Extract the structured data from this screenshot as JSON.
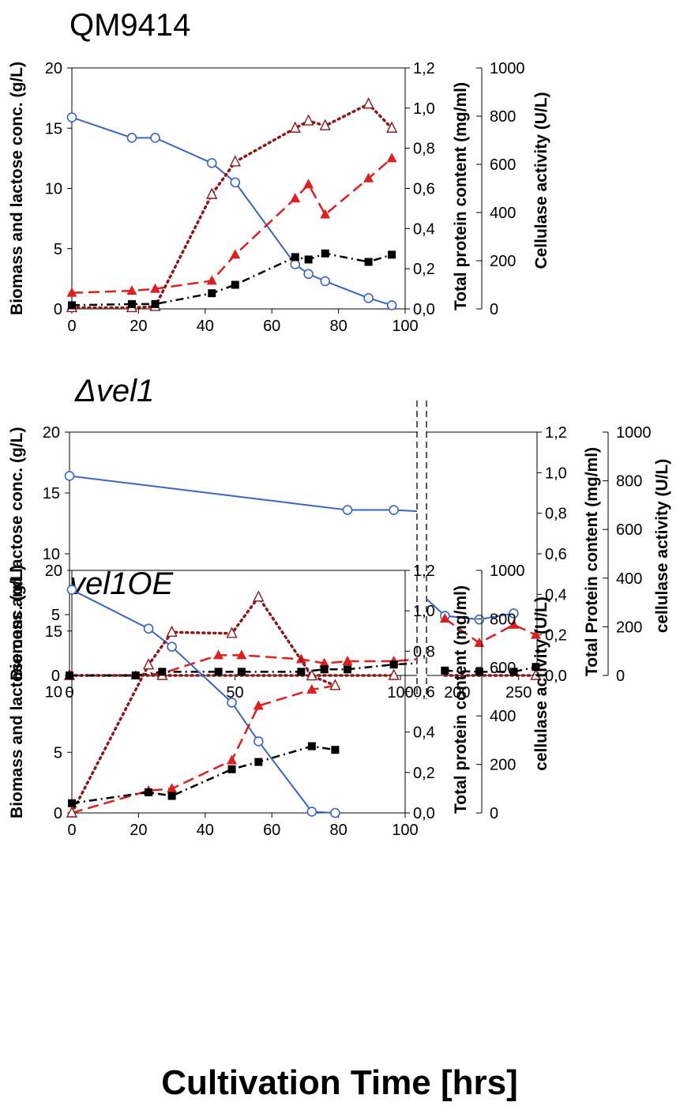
{
  "figure": {
    "x_title": "Cultivation Time [hrs]"
  },
  "series_legend": {
    "lactose": {
      "marker": "open-circle",
      "color": "#3a63c4"
    },
    "total_protein": {
      "marker": "filled-triangle",
      "color": "#dd1f1f"
    },
    "cellulase": {
      "marker": "open-triangle",
      "color": "#8b1a1a"
    },
    "biomass": {
      "marker": "filled-square",
      "color": "#000000"
    }
  },
  "chart_data": [
    {
      "type": "line",
      "title": "QM9414",
      "ylabel_left": "Biomass and lactose conc. (g/L)",
      "ylabel_right1": "Total protein content (mg/ml)",
      "ylabel_right2": "Cellulase activity (U/L)",
      "xlim": [
        0,
        100
      ],
      "ylim_left": [
        0,
        20
      ],
      "ylim_right1": [
        0,
        1.2
      ],
      "ylim_right2": [
        0,
        1000
      ],
      "x_ticks": [
        "0",
        "20",
        "40",
        "60",
        "80",
        "100"
      ],
      "yleft_ticks": [
        "0",
        "5",
        "10",
        "15",
        "20"
      ],
      "yright1_ticks": [
        "0,0",
        "0,2",
        "0,4",
        "0,6",
        "0,8",
        "1,0",
        "1,2"
      ],
      "yright2_ticks": [
        "0",
        "200",
        "400",
        "600",
        "800",
        "1000"
      ],
      "series": [
        {
          "axis": "left",
          "key": "lactose",
          "style": "solid",
          "color": "#3a63c4",
          "marker": "open-circle",
          "x": [
            0,
            18,
            25,
            42,
            49,
            67,
            71,
            76,
            89,
            96
          ],
          "y": [
            15.9,
            14.2,
            14.2,
            12.1,
            10.5,
            3.7,
            2.9,
            2.3,
            0.9,
            0.3
          ]
        },
        {
          "axis": "right1",
          "key": "total_protein",
          "style": "dashed",
          "color": "#dd1f1f",
          "marker": "filled-triangle",
          "x": [
            0,
            18,
            25,
            42,
            49,
            67,
            71,
            76,
            89,
            96
          ],
          "y": [
            0.08,
            0.09,
            0.1,
            0.14,
            0.27,
            0.55,
            0.62,
            0.47,
            0.65,
            0.75
          ]
        },
        {
          "axis": "right2",
          "key": "cellulase",
          "style": "dotted",
          "color": "#8b1a1a",
          "marker": "open-triangle",
          "x": [
            0,
            18,
            25,
            42,
            49,
            67,
            71,
            76,
            89,
            96
          ],
          "y": [
            5,
            5,
            10,
            475,
            610,
            750,
            780,
            760,
            850,
            750
          ]
        },
        {
          "axis": "left",
          "key": "biomass",
          "style": "dashdot",
          "color": "#000000",
          "marker": "filled-square",
          "x": [
            0,
            18,
            25,
            42,
            49,
            67,
            71,
            76,
            89,
            96
          ],
          "y": [
            0.3,
            0.4,
            0.4,
            1.3,
            2.0,
            4.3,
            4.1,
            4.6,
            3.9,
            4.5
          ]
        }
      ]
    },
    {
      "type": "line",
      "title": "Δvel1",
      "ylabel_left": "Biomass and lactose conc. (g/L)",
      "ylabel_right1": "Total Protein content (mg/ml)",
      "ylabel_right2": "cellulase activity (U/L)",
      "axis_break": true,
      "segment1_xlim": [
        0,
        105
      ],
      "segment2_xlim": [
        175,
        265
      ],
      "ylim_left": [
        0,
        20
      ],
      "ylim_right1": [
        0,
        1.2
      ],
      "ylim_right2": [
        0,
        1000
      ],
      "x_ticks_segment1": [
        "0",
        "50",
        "100"
      ],
      "x_ticks_segment2": [
        "200",
        "250"
      ],
      "yleft_ticks": [
        "0",
        "5",
        "10",
        "15",
        "20"
      ],
      "yright1_ticks": [
        "0,0",
        "0,2",
        "0,4",
        "0,6",
        "0,8",
        "1,0",
        "1,2"
      ],
      "yright2_ticks": [
        "0",
        "200",
        "400",
        "600",
        "800",
        "1000"
      ],
      "series": [
        {
          "axis": "left",
          "key": "lactose",
          "style": "solid",
          "color": "#3a63c4",
          "marker": "open-circle",
          "segment1": {
            "x": [
              0,
              84,
              98,
              105
            ],
            "y": [
              16.4,
              13.6,
              13.6,
              13.5
            ],
            "markers": [
              true,
              true,
              true,
              false
            ]
          },
          "segment2": {
            "x": [
              175,
              190,
              218,
              246
            ],
            "y": [
              6.3,
              4.9,
              4.6,
              5.1
            ],
            "markers": [
              false,
              true,
              true,
              true
            ]
          }
        },
        {
          "axis": "right1",
          "key": "total_protein",
          "style": "dashed",
          "color": "#dd1f1f",
          "marker": "filled-triangle",
          "segment1": {
            "x": [
              0,
              20,
              28,
              45,
              52,
              70,
              77,
              84,
              98,
              105
            ],
            "y": [
              0,
              0,
              0.01,
              0.1,
              0.1,
              0.08,
              0.06,
              0.07,
              0.07,
              0.08
            ],
            "markers": [
              true,
              true,
              true,
              true,
              true,
              true,
              true,
              true,
              true,
              false
            ]
          },
          "segment2": {
            "x": [
              190,
              218,
              246,
              264
            ],
            "y": [
              0.28,
              0.16,
              0.25,
              0.2
            ],
            "markers": [
              true,
              true,
              true,
              true
            ]
          }
        },
        {
          "axis": "right2",
          "key": "cellulase",
          "style": "dotted",
          "color": "#8b1a1a",
          "marker": "open-triangle",
          "segment1": {
            "x": [
              0,
              28,
              98
            ],
            "y": [
              0,
              0,
              0
            ],
            "markers": [
              true,
              true,
              true
            ]
          },
          "segment2": {
            "x": [
              190,
              264
            ],
            "y": [
              0,
              0
            ],
            "markers": [
              false,
              true
            ]
          }
        },
        {
          "axis": "left",
          "key": "biomass",
          "style": "dashdot",
          "color": "#000000",
          "marker": "filled-square",
          "segment1": {
            "x": [
              0,
              20,
              28,
              45,
              52,
              70,
              77,
              84,
              98,
              105
            ],
            "y": [
              0,
              0,
              0.3,
              0.3,
              0.3,
              0.3,
              0.5,
              0.5,
              0.9,
              1.0
            ],
            "markers": [
              true,
              true,
              true,
              true,
              true,
              true,
              true,
              true,
              true,
              false
            ]
          },
          "segment2": {
            "x": [
              190,
              218,
              246,
              264
            ],
            "y": [
              0.4,
              0.3,
              0.3,
              0.7
            ],
            "markers": [
              true,
              true,
              true,
              true
            ]
          }
        }
      ]
    },
    {
      "type": "line",
      "title": "vel1OE",
      "ylabel_left": "Biomass and lactose conc. (g/L)",
      "ylabel_right1": "Total protein content (mg/ml)",
      "ylabel_right2": "cellulase activity (U/L)",
      "xlim": [
        0,
        100
      ],
      "ylim_left": [
        0,
        20
      ],
      "ylim_right1": [
        0,
        1.2
      ],
      "ylim_right2": [
        0,
        1000
      ],
      "x_ticks": [
        "0",
        "20",
        "40",
        "60",
        "80",
        "100"
      ],
      "yleft_ticks": [
        "0",
        "5",
        "10",
        "15",
        "20"
      ],
      "yright1_ticks": [
        "0,0",
        "0,2",
        "0,4",
        "0,6",
        "0,8",
        "1,0",
        "1,2"
      ],
      "yright2_ticks": [
        "0",
        "200",
        "400",
        "600",
        "800",
        "1000"
      ],
      "series": [
        {
          "axis": "left",
          "key": "lactose",
          "style": "solid",
          "color": "#3a63c4",
          "marker": "open-circle",
          "x": [
            0,
            23,
            30,
            48,
            56,
            72,
            79
          ],
          "y": [
            18.4,
            15.2,
            13.7,
            9.1,
            5.9,
            0.1,
            0.0
          ]
        },
        {
          "axis": "right1",
          "key": "total_protein",
          "style": "dashed",
          "color": "#dd1f1f",
          "marker": "filled-triangle",
          "x": [
            0,
            23,
            30,
            48,
            56,
            72,
            79
          ],
          "y": [
            0.0,
            0.11,
            0.12,
            0.26,
            0.53,
            0.61,
            0.63
          ]
        },
        {
          "axis": "right2",
          "key": "cellulase",
          "style": "dotted",
          "color": "#8b1a1a",
          "marker": "open-triangle",
          "x": [
            0,
            23,
            30,
            48,
            56,
            72,
            79
          ],
          "y": [
            0,
            610,
            745,
            740,
            890,
            565,
            525
          ]
        },
        {
          "axis": "left",
          "key": "biomass",
          "style": "dashdot",
          "color": "#000000",
          "marker": "filled-square",
          "x": [
            0,
            23,
            30,
            48,
            56,
            72,
            79
          ],
          "y": [
            0.8,
            1.7,
            1.4,
            3.6,
            4.2,
            5.5,
            5.2
          ]
        }
      ]
    }
  ]
}
